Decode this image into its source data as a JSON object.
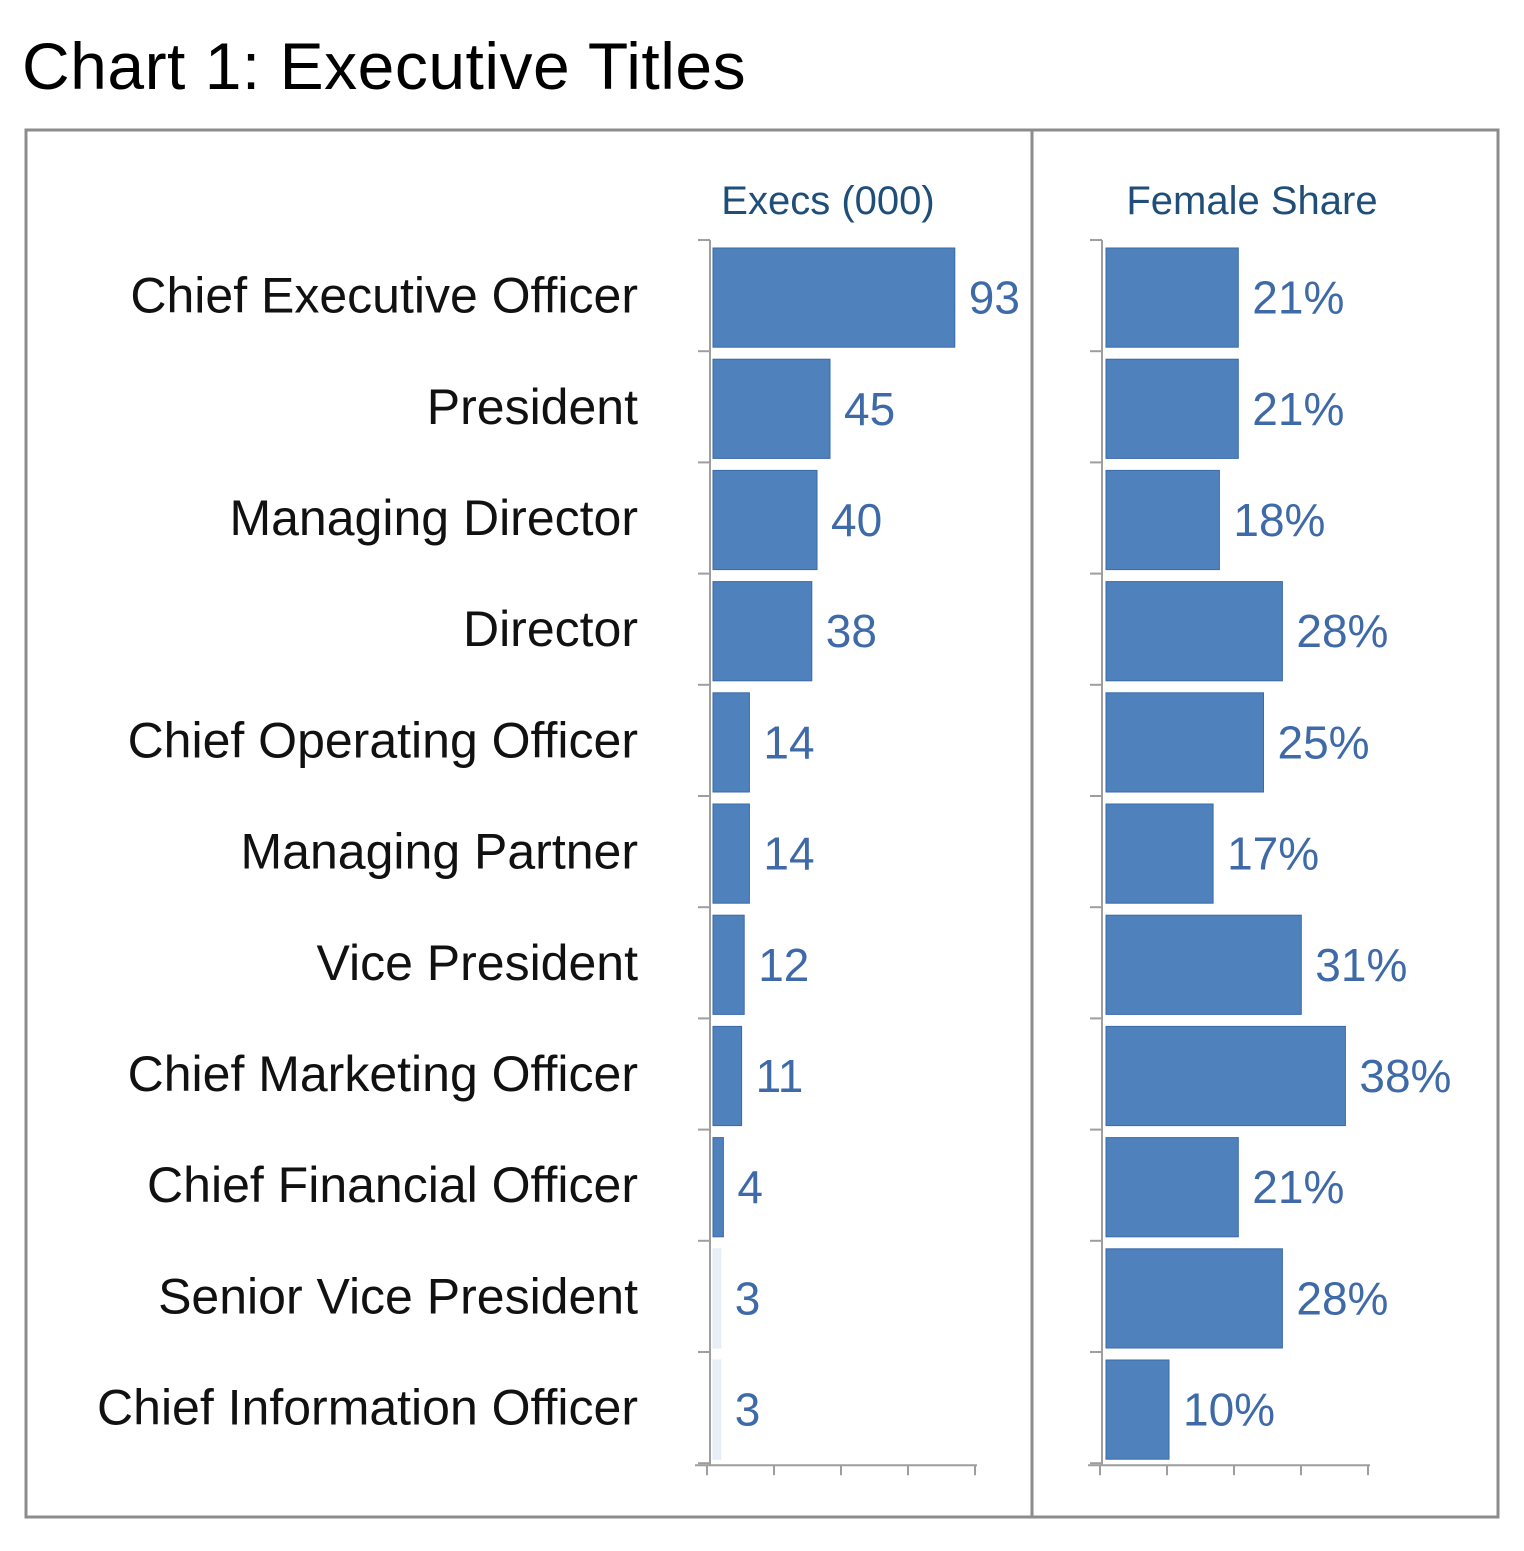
{
  "title": "Chart 1: Executive Titles",
  "colors": {
    "bar": "#4f81bd",
    "axis": "#9e9e9e",
    "value_text": "#3f6aa8",
    "panel_title": "#1f4e79",
    "frame": "#8c8c8c"
  },
  "chart_data": {
    "type": "bar",
    "orientation": "horizontal",
    "title": "Chart 1: Executive Titles",
    "categories": [
      "Chief Executive Officer",
      "President",
      "Managing Director",
      "Director",
      "Chief Operating Officer",
      "Managing Partner",
      "Vice President",
      "Chief Marketing Officer",
      "Chief Financial Officer",
      "Senior Vice President",
      "Chief Information Officer"
    ],
    "panels": [
      {
        "name": "Execs (000)",
        "values": [
          93,
          45,
          40,
          38,
          14,
          14,
          12,
          11,
          4,
          3,
          3
        ],
        "labels": [
          "93",
          "45",
          "40",
          "38",
          "14",
          "14",
          "12",
          "11",
          "4",
          "3",
          "3"
        ],
        "xlim": [
          0,
          100
        ],
        "grid": false
      },
      {
        "name": "Female Share",
        "values": [
          21,
          21,
          18,
          28,
          25,
          17,
          31,
          38,
          21,
          28,
          10
        ],
        "labels": [
          "21%",
          "21%",
          "18%",
          "28%",
          "25%",
          "17%",
          "31%",
          "38%",
          "21%",
          "28%",
          "10%"
        ],
        "xlim": [
          0,
          42
        ],
        "grid": false
      }
    ]
  }
}
